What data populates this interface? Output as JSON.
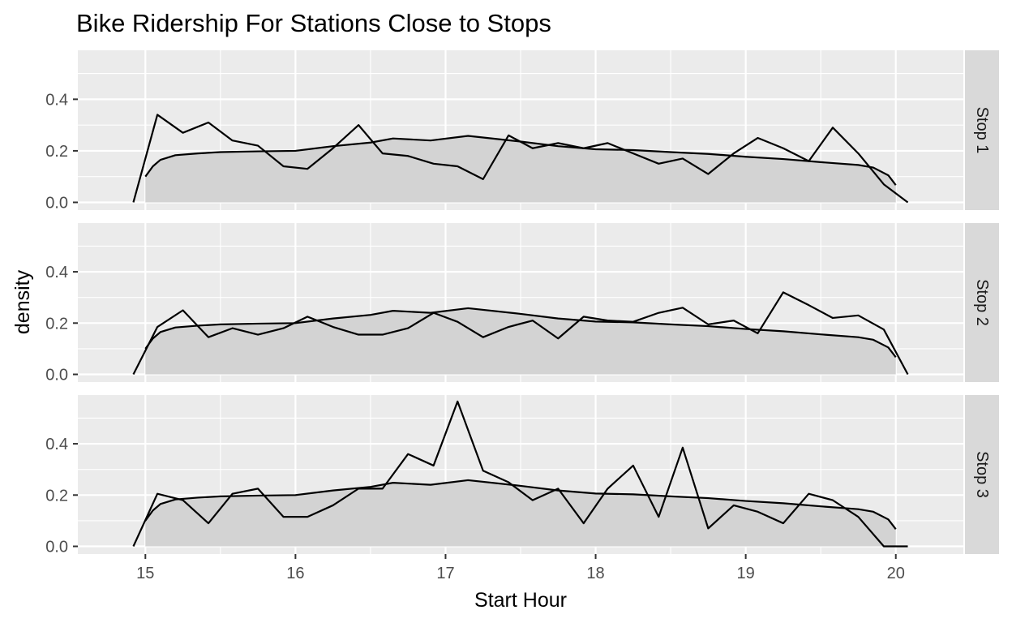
{
  "chart_data": {
    "type": "line",
    "title": "Bike Ridership For Stations Close to Stops",
    "xlabel": "Start Hour",
    "ylabel": "density",
    "xlim": [
      14.55,
      20.45
    ],
    "ylim": [
      -0.03,
      0.59
    ],
    "x_ticks": [
      15,
      16,
      17,
      18,
      19,
      20
    ],
    "y_ticks": [
      0.0,
      0.2,
      0.4
    ],
    "y_tick_labels": [
      "0.0",
      "0.2",
      "0.4"
    ],
    "grid": true,
    "facet_labels": [
      "Stop 1",
      "Stop 2",
      "Stop 3"
    ],
    "density_curve": {
      "x": [
        15.0,
        15.05,
        15.1,
        15.2,
        15.35,
        15.5,
        15.75,
        16.0,
        16.25,
        16.5,
        16.65,
        16.9,
        17.15,
        17.5,
        17.75,
        18.0,
        18.25,
        18.5,
        18.75,
        19.0,
        19.25,
        19.5,
        19.75,
        19.85,
        19.95,
        20.0
      ],
      "y": [
        0.1,
        0.14,
        0.165,
        0.183,
        0.19,
        0.195,
        0.198,
        0.2,
        0.218,
        0.232,
        0.248,
        0.24,
        0.258,
        0.236,
        0.218,
        0.206,
        0.203,
        0.195,
        0.188,
        0.177,
        0.168,
        0.156,
        0.145,
        0.135,
        0.105,
        0.067
      ]
    },
    "panels": [
      {
        "facet": "Stop 1",
        "x": [
          14.92,
          15.08,
          15.25,
          15.42,
          15.58,
          15.75,
          15.92,
          16.08,
          16.25,
          16.42,
          16.58,
          16.75,
          16.92,
          17.08,
          17.25,
          17.42,
          17.58,
          17.75,
          17.92,
          18.08,
          18.25,
          18.42,
          18.58,
          18.75,
          18.92,
          19.08,
          19.25,
          19.42,
          19.58,
          19.75,
          19.92,
          20.08
        ],
        "y": [
          0.0,
          0.34,
          0.27,
          0.31,
          0.24,
          0.22,
          0.14,
          0.13,
          0.21,
          0.3,
          0.19,
          0.18,
          0.15,
          0.14,
          0.09,
          0.26,
          0.21,
          0.23,
          0.21,
          0.23,
          0.19,
          0.15,
          0.17,
          0.11,
          0.19,
          0.25,
          0.21,
          0.16,
          0.29,
          0.19,
          0.07,
          0.0
        ]
      },
      {
        "facet": "Stop 2",
        "x": [
          14.92,
          15.08,
          15.25,
          15.42,
          15.58,
          15.75,
          15.92,
          16.08,
          16.25,
          16.42,
          16.58,
          16.75,
          16.92,
          17.08,
          17.25,
          17.42,
          17.58,
          17.75,
          17.92,
          18.08,
          18.25,
          18.42,
          18.58,
          18.75,
          18.92,
          19.08,
          19.25,
          19.42,
          19.58,
          19.75,
          19.92,
          20.08
        ],
        "y": [
          0.0,
          0.185,
          0.25,
          0.145,
          0.18,
          0.155,
          0.18,
          0.225,
          0.185,
          0.155,
          0.155,
          0.18,
          0.24,
          0.205,
          0.145,
          0.185,
          0.21,
          0.14,
          0.225,
          0.21,
          0.205,
          0.24,
          0.26,
          0.195,
          0.21,
          0.16,
          0.32,
          0.27,
          0.22,
          0.23,
          0.175,
          0.0
        ]
      },
      {
        "facet": "Stop 3",
        "x": [
          14.92,
          15.08,
          15.25,
          15.42,
          15.58,
          15.75,
          15.92,
          16.08,
          16.25,
          16.42,
          16.58,
          16.75,
          16.92,
          17.08,
          17.25,
          17.42,
          17.58,
          17.75,
          17.92,
          18.08,
          18.25,
          18.42,
          18.58,
          18.75,
          18.92,
          19.08,
          19.25,
          19.42,
          19.58,
          19.75,
          19.92,
          20.08
        ],
        "y": [
          0.0,
          0.205,
          0.18,
          0.09,
          0.205,
          0.225,
          0.115,
          0.115,
          0.16,
          0.225,
          0.225,
          0.36,
          0.315,
          0.565,
          0.295,
          0.25,
          0.18,
          0.225,
          0.09,
          0.225,
          0.315,
          0.115,
          0.385,
          0.07,
          0.16,
          0.135,
          0.09,
          0.205,
          0.18,
          0.115,
          0.0,
          0.0
        ]
      }
    ],
    "colors": {
      "panel_background": "#ebebeb",
      "grid_line": "#ffffff",
      "density_fill": "#d3d3d3",
      "line": "#000000",
      "strip_background": "#d9d9d9"
    }
  }
}
